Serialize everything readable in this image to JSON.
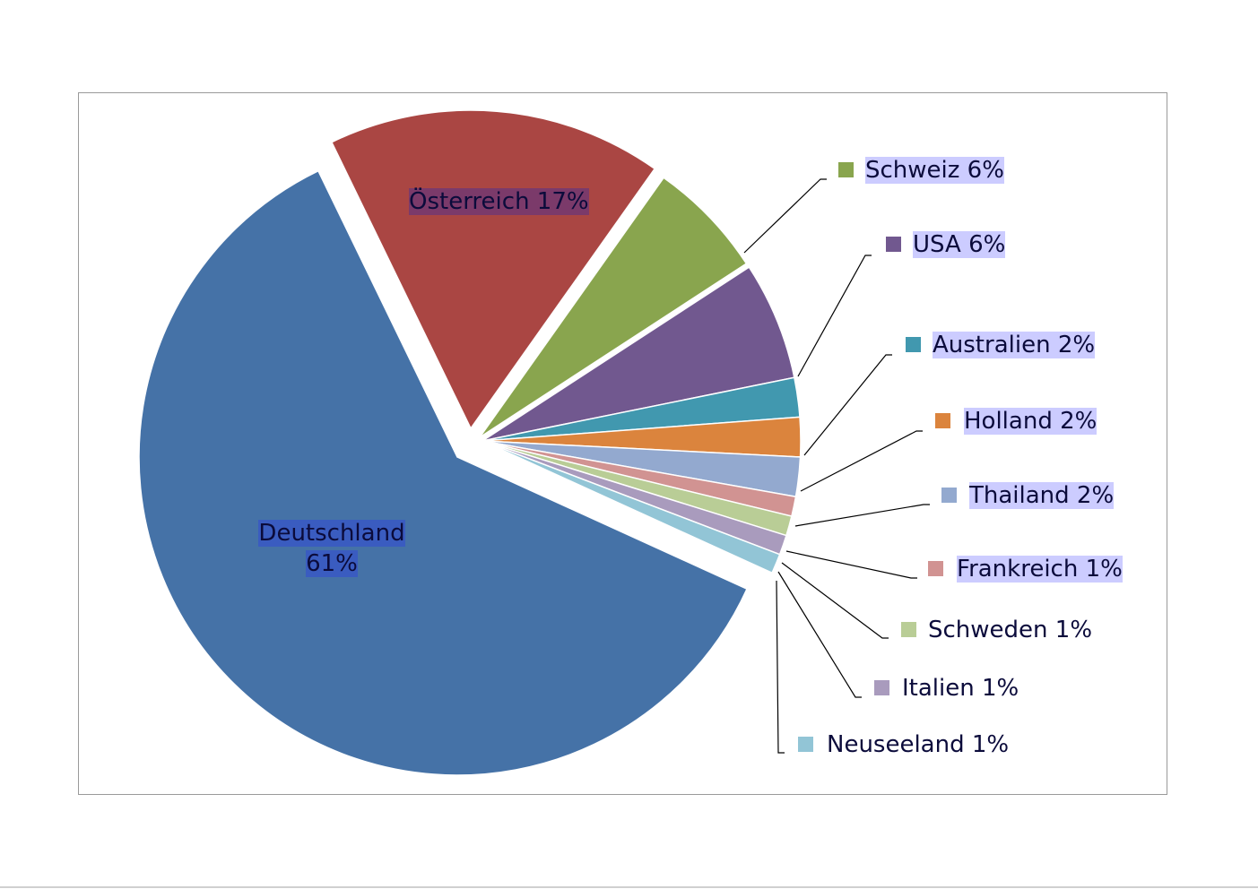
{
  "chart_data": {
    "type": "pie",
    "title": "",
    "categories": [
      "Deutschland",
      "Österreich",
      "Schweiz",
      "USA",
      "Australien",
      "Holland",
      "Thailand",
      "Frankreich",
      "Schweden",
      "Italien",
      "Neuseeland"
    ],
    "values": [
      61,
      17,
      6,
      6,
      2,
      2,
      2,
      1,
      1,
      1,
      1
    ],
    "unit": "%",
    "labels": [
      "Deutschland",
      "Österreich 17%",
      "Schweiz 6%",
      "USA 6%",
      "Australien 2%",
      "Holland 2%",
      "Thailand 2%",
      "Frankreich 1%",
      "Schweden 1%",
      "Italien 1%",
      "Neuseeland  1%"
    ],
    "deutschland_label": [
      "Deutschland",
      "61%"
    ],
    "colors": [
      "#4572a7",
      "#aa4643",
      "#89a54e",
      "#71588f",
      "#4198af",
      "#db843d",
      "#93a9cf",
      "#d19392",
      "#b9cd96",
      "#a99bbd",
      "#92c5d6"
    ],
    "exploded": [
      "Österreich",
      "Schweiz",
      "USA",
      "Australien",
      "Holland",
      "Thailand",
      "Frankreich",
      "Schweden",
      "Italien",
      "Neuseeland"
    ],
    "legend": "callouts-right"
  }
}
